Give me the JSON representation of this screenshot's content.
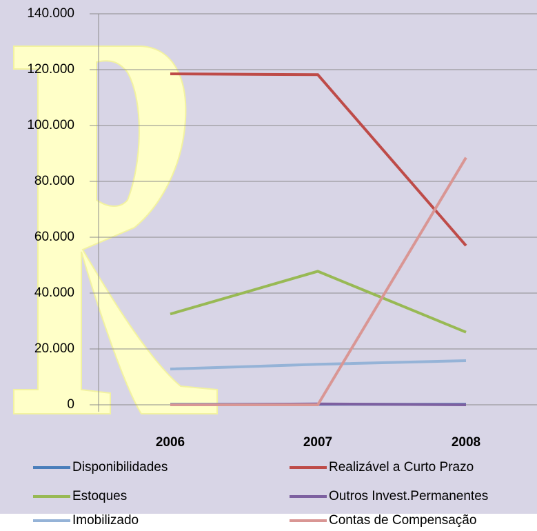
{
  "chart_data": {
    "type": "line",
    "categories": [
      "2006",
      "2007",
      "2008"
    ],
    "series": [
      {
        "name": "Disponibilidades",
        "color": "#4a7ebb",
        "values": [
          200,
          200,
          200
        ]
      },
      {
        "name": "Realizável a Curto Prazo",
        "color": "#be4b48",
        "values": [
          118500,
          118200,
          57000
        ]
      },
      {
        "name": "Estoques",
        "color": "#98b954",
        "values": [
          32500,
          47800,
          26000
        ]
      },
      {
        "name": "Outros Invest.Permanentes",
        "color": "#7d60a0",
        "values": [
          0,
          300,
          0
        ]
      },
      {
        "name": "Imobilizado",
        "color": "#95b3d7",
        "values": [
          12800,
          14500,
          15800
        ]
      },
      {
        "name": "Contas de Compensação",
        "color": "#d99694",
        "values": [
          0,
          0,
          88500
        ]
      }
    ],
    "ylim": [
      0,
      140000
    ],
    "yticks": [
      0,
      {
        "value": 20000,
        "label": "20.000"
      },
      {
        "value": 40000,
        "label": "40.000"
      },
      {
        "value": 60000,
        "label": "60.000"
      },
      {
        "value": 80000,
        "label": "80.000"
      },
      {
        "value": 100000,
        "label": "100.000"
      },
      {
        "value": 120000,
        "label": "120.000"
      },
      {
        "value": 140000,
        "label": "140.000"
      }
    ],
    "grid": true
  }
}
